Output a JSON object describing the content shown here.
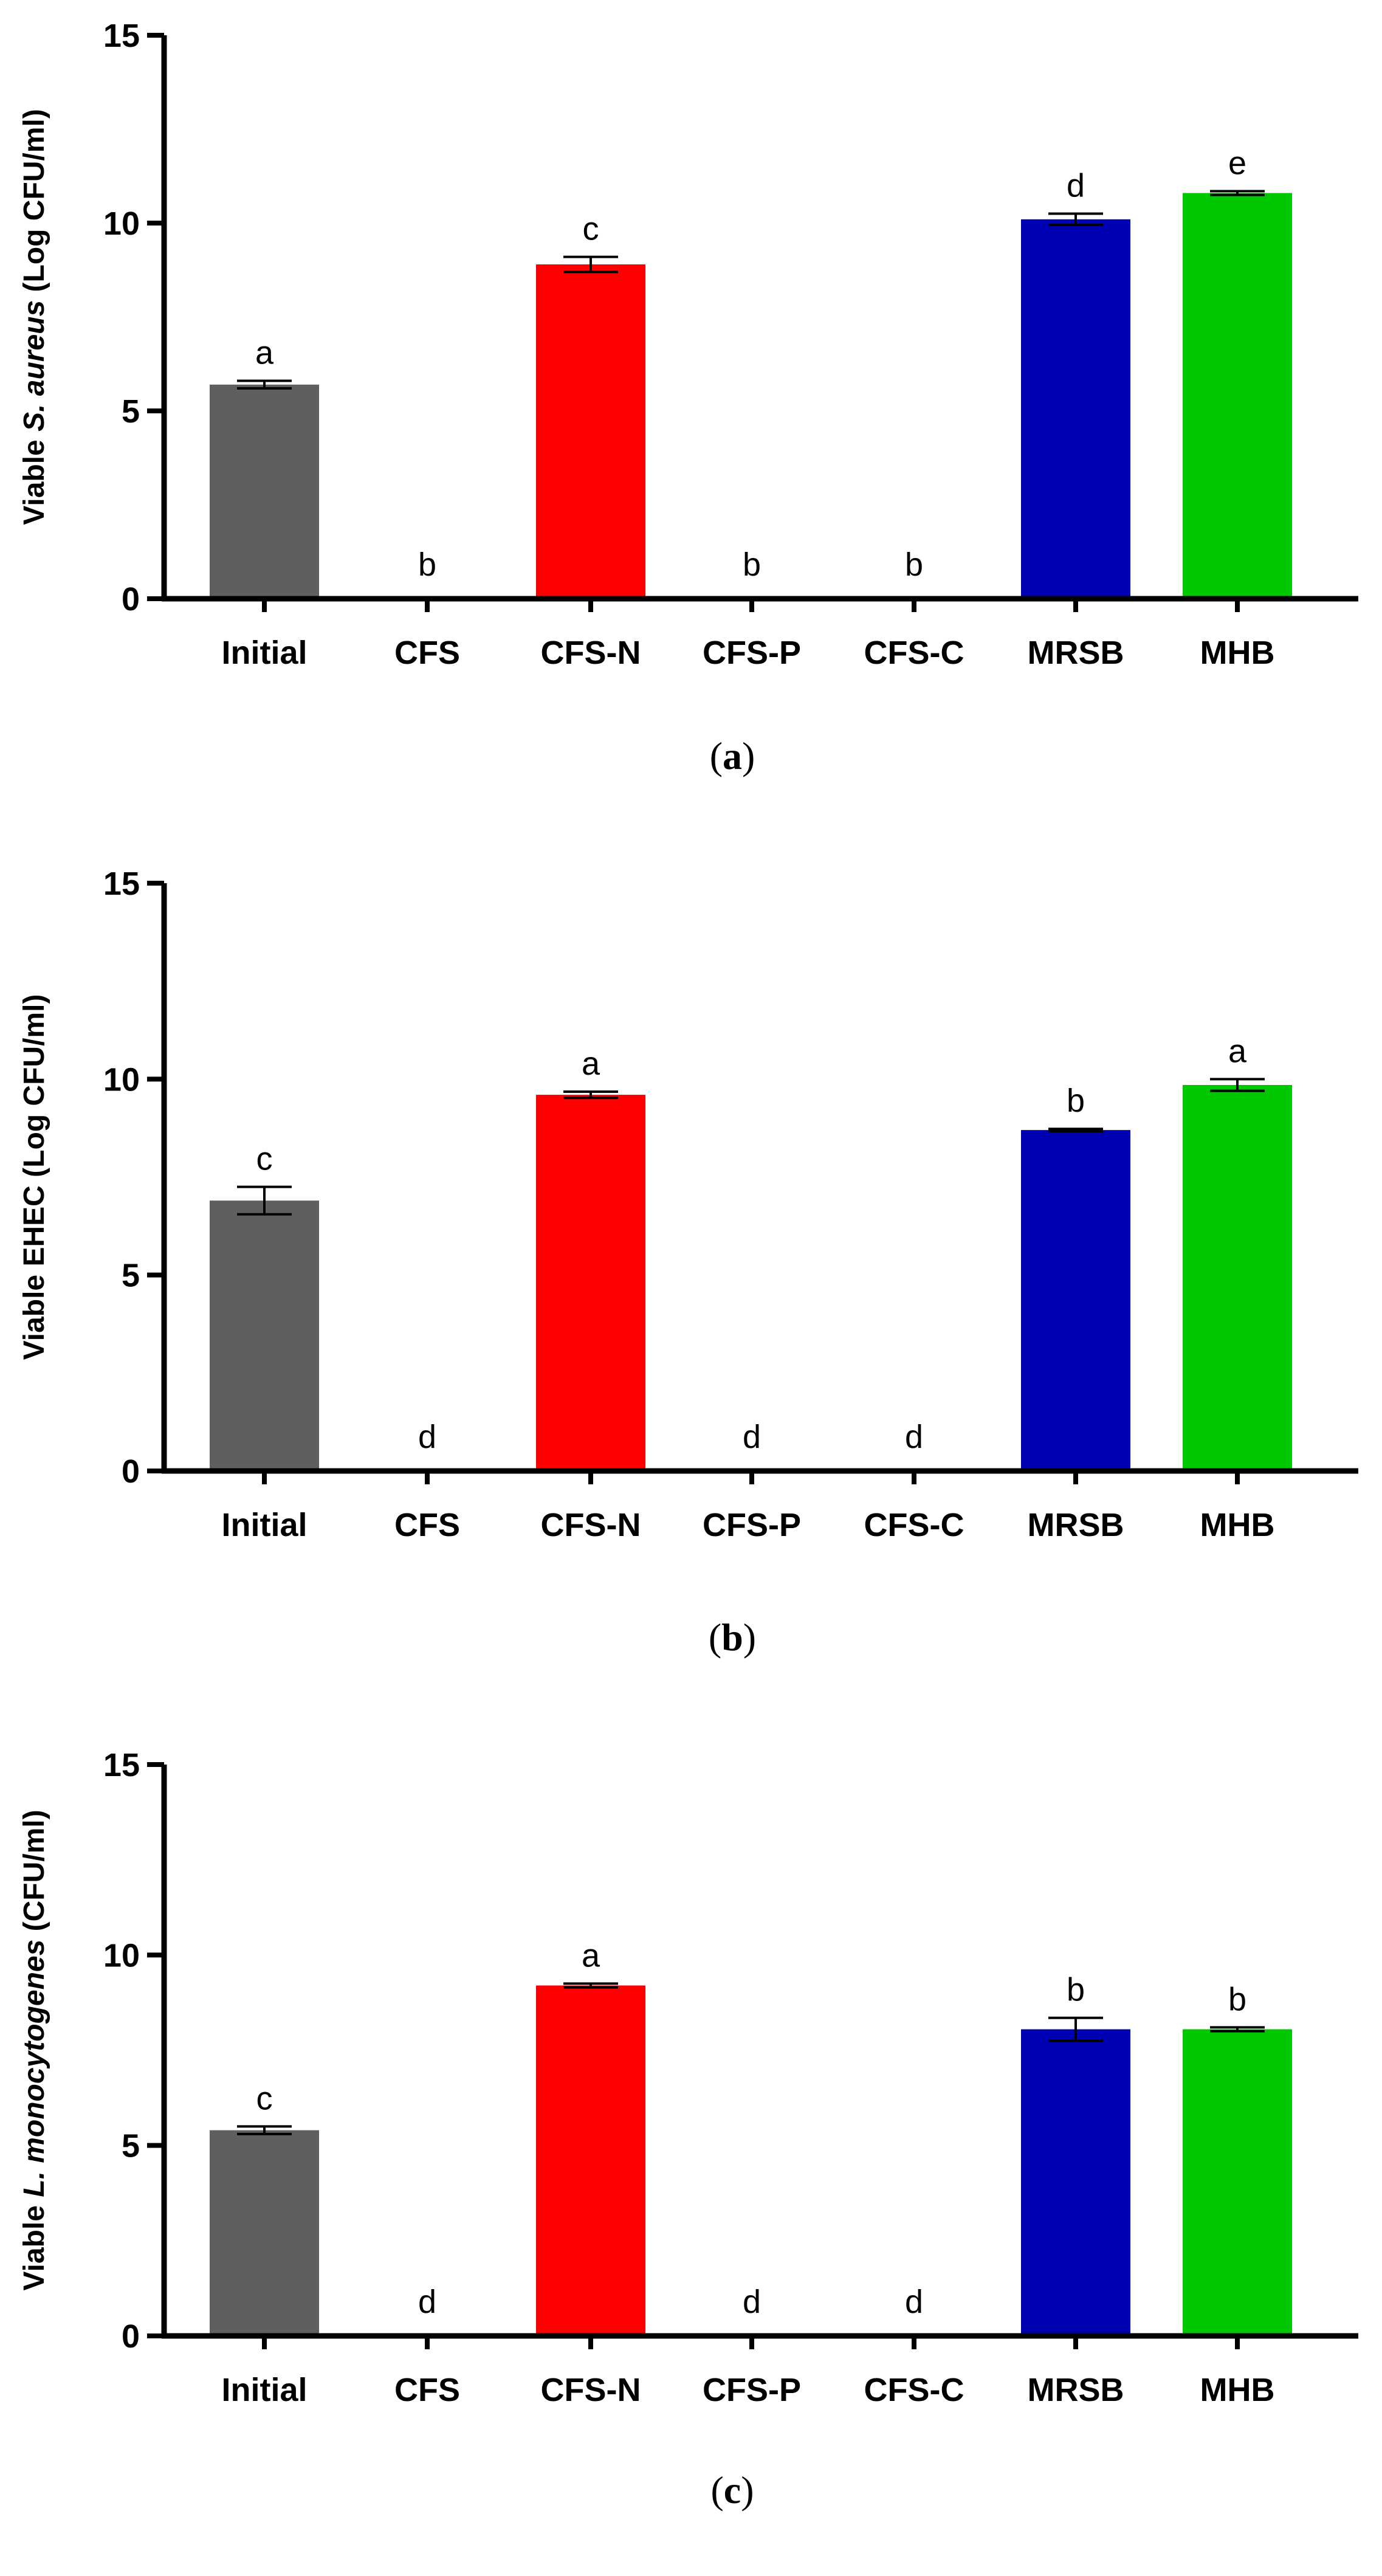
{
  "colors": {
    "Initial": "#5f5f5f",
    "CFS": "#5f5f5f",
    "CFS-N": "#ff0000",
    "CFS-P": "#5f5f5f",
    "CFS-C": "#5f5f5f",
    "MRSB": "#0000b3",
    "MHB": "#00c800",
    "axis": "#000000"
  },
  "chart_data": [
    {
      "type": "bar",
      "panel_label": "a",
      "ylabel": {
        "prefix": "Viable ",
        "italic": "S. aureus",
        "suffix": " (Log CFU/ml)"
      },
      "categories": [
        "Initial",
        "CFS",
        "CFS-N",
        "CFS-P",
        "CFS-C",
        "MRSB",
        "MHB"
      ],
      "values": [
        5.7,
        0,
        8.9,
        0,
        0,
        10.1,
        10.8
      ],
      "errors": [
        0.1,
        0,
        0.2,
        0,
        0,
        0.15,
        0.05
      ],
      "significance": [
        "a",
        "b",
        "c",
        "b",
        "b",
        "d",
        "e"
      ],
      "ylim": [
        0,
        15
      ],
      "yticks": [
        0,
        5,
        10,
        15
      ]
    },
    {
      "type": "bar",
      "panel_label": "b",
      "ylabel": {
        "prefix": "Viable EHEC (Log CFU/ml)",
        "italic": "",
        "suffix": ""
      },
      "categories": [
        "Initial",
        "CFS",
        "CFS-N",
        "CFS-P",
        "CFS-C",
        "MRSB",
        "MHB"
      ],
      "values": [
        6.9,
        0,
        9.6,
        0,
        0,
        8.7,
        9.85
      ],
      "errors": [
        0.35,
        0,
        0.08,
        0,
        0,
        0.03,
        0.15
      ],
      "significance": [
        "c",
        "d",
        "a",
        "d",
        "d",
        "b",
        "a"
      ],
      "ylim": [
        0,
        15
      ],
      "yticks": [
        0,
        5,
        10,
        15
      ]
    },
    {
      "type": "bar",
      "panel_label": "c",
      "ylabel": {
        "prefix": "Viable ",
        "italic": "L. monocytogenes",
        "suffix": " (CFU/ml)"
      },
      "categories": [
        "Initial",
        "CFS",
        "CFS-N",
        "CFS-P",
        "CFS-C",
        "MRSB",
        "MHB"
      ],
      "values": [
        5.4,
        0,
        9.2,
        0,
        0,
        8.05,
        8.05
      ],
      "errors": [
        0.1,
        0,
        0.05,
        0,
        0,
        0.3,
        0.05
      ],
      "significance": [
        "c",
        "d",
        "a",
        "d",
        "d",
        "b",
        "b"
      ],
      "ylim": [
        0,
        15
      ],
      "yticks": [
        0,
        5,
        10,
        15
      ]
    }
  ]
}
